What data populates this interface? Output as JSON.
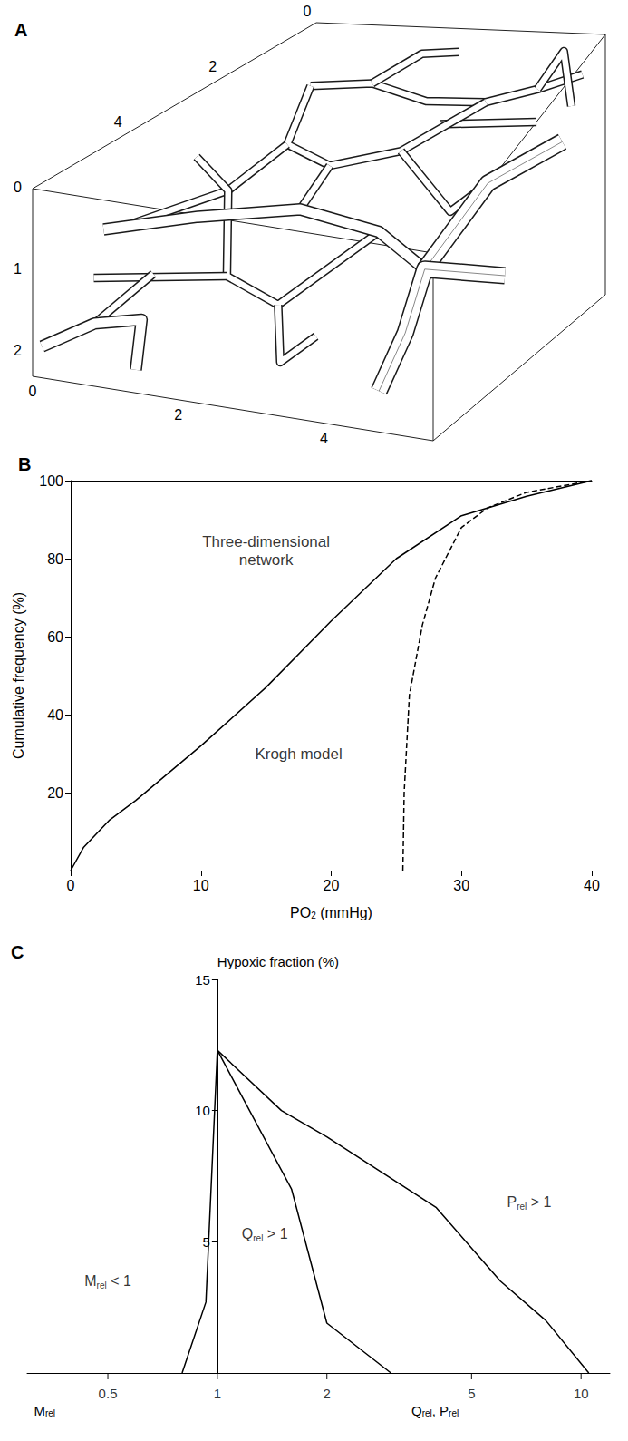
{
  "diagram": {
    "panel": "A",
    "box": {
      "x_range": [
        0,
        5.5
      ],
      "y_range": [
        0,
        6
      ],
      "z_range": [
        0,
        2.3
      ],
      "x_ticks": [
        0,
        2,
        4
      ],
      "y_ticks": [
        0,
        2,
        4
      ],
      "z_ticks": [
        0,
        1,
        2
      ]
    },
    "vessels": [
      {
        "diameter": 0.08,
        "points": [
          [
            3.8,
            2.2,
            0.2
          ],
          [
            5.5,
            2.4,
            0.0
          ]
        ]
      },
      {
        "diameter": 0.08,
        "points": [
          [
            1.5,
            2.0,
            0.0
          ],
          [
            2.2,
            1.5,
            0.1
          ],
          [
            3.2,
            1.6,
            0.2
          ],
          [
            4.0,
            1.2,
            0.3
          ],
          [
            4.8,
            1.0,
            0.2
          ],
          [
            5.5,
            0.8,
            0.1
          ]
        ]
      },
      {
        "diameter": 0.08,
        "points": [
          [
            1.5,
            2.0,
            0.0
          ],
          [
            1.8,
            3.0,
            0.3
          ],
          [
            2.6,
            3.2,
            0.4
          ],
          [
            3.5,
            2.8,
            0.3
          ],
          [
            4.0,
            1.2,
            0.3
          ]
        ]
      },
      {
        "diameter": 0.08,
        "points": [
          [
            1.8,
            3.0,
            0.3
          ],
          [
            1.4,
            3.8,
            0.6
          ],
          [
            0.4,
            4.4,
            0.9
          ]
        ]
      },
      {
        "diameter": 0.08,
        "points": [
          [
            2.6,
            3.2,
            0.4
          ],
          [
            2.5,
            3.8,
            0.7
          ]
        ]
      },
      {
        "diameter": 0.08,
        "points": [
          [
            3.5,
            2.8,
            0.3
          ],
          [
            4.4,
            3.0,
            0.8
          ],
          [
            4.8,
            2.6,
            0.6
          ]
        ]
      },
      {
        "diameter": 0.08,
        "points": [
          [
            2.2,
            1.5,
            0.1
          ],
          [
            2.6,
            0.8,
            0.0
          ],
          [
            3.0,
            0.4,
            0.1
          ]
        ]
      },
      {
        "diameter": 0.08,
        "points": [
          [
            4.8,
            1.0,
            0.2
          ],
          [
            5.0,
            0.5,
            0.0
          ],
          [
            5.3,
            0.8,
            0.4
          ]
        ]
      },
      {
        "diameter": 0.08,
        "points": [
          [
            0.5,
            3.2,
            0.5
          ],
          [
            1.4,
            3.8,
            0.6
          ],
          [
            2.0,
            4.8,
            1.2
          ],
          [
            2.8,
            4.9,
            1.4
          ],
          [
            3.6,
            3.6,
            0.9
          ]
        ]
      },
      {
        "diameter": 0.08,
        "points": [
          [
            0.2,
            5.0,
            1.4
          ],
          [
            2.0,
            4.8,
            1.2
          ]
        ]
      },
      {
        "diameter": 0.08,
        "points": [
          [
            2.8,
            4.9,
            1.4
          ],
          [
            3.2,
            5.6,
            1.8
          ],
          [
            3.6,
            5.4,
            1.5
          ]
        ]
      },
      {
        "diameter": 0.08,
        "points": [
          [
            0.6,
            5.6,
            1.7
          ],
          [
            0.8,
            4.6,
            1.4
          ]
        ]
      },
      {
        "diameter": 0.13,
        "points": [
          [
            0,
            4.5,
            1.0
          ],
          [
            1.2,
            4.2,
            0.8
          ],
          [
            2.5,
            3.8,
            0.7
          ],
          [
            3.6,
            3.6,
            0.9
          ],
          [
            4.6,
            4.2,
            1.0
          ]
        ]
      },
      {
        "diameter": 0.13,
        "points": [
          [
            0,
            5.8,
            2.0
          ],
          [
            0.6,
            5.6,
            1.7
          ],
          [
            1.2,
            5.5,
            1.6
          ],
          [
            1.3,
            5.8,
            2.1
          ]
        ]
      },
      {
        "diameter": 0.2,
        "points": [
          [
            5.5,
            1.5,
            0.5
          ],
          [
            4.8,
            2.6,
            0.6
          ],
          [
            4.6,
            4.2,
            1.0
          ]
        ]
      },
      {
        "diameter": 0.2,
        "points": [
          [
            5.5,
            3.5,
            1.2
          ],
          [
            4.6,
            4.2,
            1.0
          ],
          [
            4.5,
            4.6,
            1.6
          ],
          [
            4.4,
            5.2,
            2.1
          ]
        ]
      }
    ]
  },
  "chart_data": [
    {
      "panel": "B",
      "type": "line",
      "xlabel": "PO2 (mmHg)",
      "ylabel": "Cumulative frequency (%)",
      "xlim": [
        0,
        40
      ],
      "xticks": [
        0,
        10,
        20,
        30,
        40
      ],
      "ylim": [
        0,
        100
      ],
      "yticks": [
        20,
        40,
        60,
        80,
        100
      ],
      "grid": false,
      "series": [
        {
          "name": "Three-dimensional network",
          "color": "#000000",
          "line_style": "solid",
          "x": [
            0,
            1,
            3,
            5,
            10,
            15,
            20,
            25,
            30,
            35,
            40
          ],
          "values": [
            0,
            6,
            13,
            18,
            32,
            47,
            64,
            80,
            91,
            96,
            100
          ]
        },
        {
          "name": "Krogh model",
          "color": "#000000",
          "line_style": "dashed",
          "x": [
            25.5,
            25.6,
            26,
            27,
            28,
            30,
            32,
            35,
            40
          ],
          "values": [
            0,
            20,
            45,
            63,
            75,
            88,
            93,
            97,
            100
          ]
        }
      ],
      "annotations": [
        {
          "text": "Three-dimensional network",
          "x": 15,
          "y": 82
        },
        {
          "text": "Krogh model",
          "x": 17.5,
          "y": 30
        }
      ]
    },
    {
      "panel": "C",
      "type": "line",
      "log": "x",
      "xlabel": [
        "Mrel",
        "Qrel, Prel"
      ],
      "ylabel": "Hypoxic fraction (%)",
      "xlim": [
        0.3,
        12
      ],
      "xticks": [
        0.5,
        1,
        2,
        5,
        10
      ],
      "ylim": [
        0,
        15
      ],
      "yticks": [
        5,
        10,
        15
      ],
      "y_axis_at": 1,
      "grid": false,
      "series": [
        {
          "name": "Mrel < 1",
          "color": "#000000",
          "line_style": "solid",
          "x": [
            0.8,
            0.93,
            1
          ],
          "values": [
            0,
            2.7,
            12.3
          ]
        },
        {
          "name": "Qrel > 1",
          "color": "#000000",
          "line_style": "solid",
          "x": [
            1,
            1.6,
            2,
            3
          ],
          "values": [
            12.3,
            7,
            1.9,
            0
          ]
        },
        {
          "name": "Prel > 1",
          "color": "#000000",
          "line_style": "solid",
          "x": [
            1,
            1.5,
            2,
            4,
            6,
            8,
            10.5
          ],
          "values": [
            12.3,
            10,
            9,
            6.3,
            3.5,
            2,
            0
          ]
        }
      ],
      "annotations": [
        {
          "text": "Mrel < 1",
          "x": 0.5,
          "y": 3.5
        },
        {
          "text": "Qrel > 1",
          "x": 1.35,
          "y": 5.3
        },
        {
          "text": "Prel > 1",
          "x": 7.2,
          "y": 6.5
        }
      ]
    }
  ]
}
